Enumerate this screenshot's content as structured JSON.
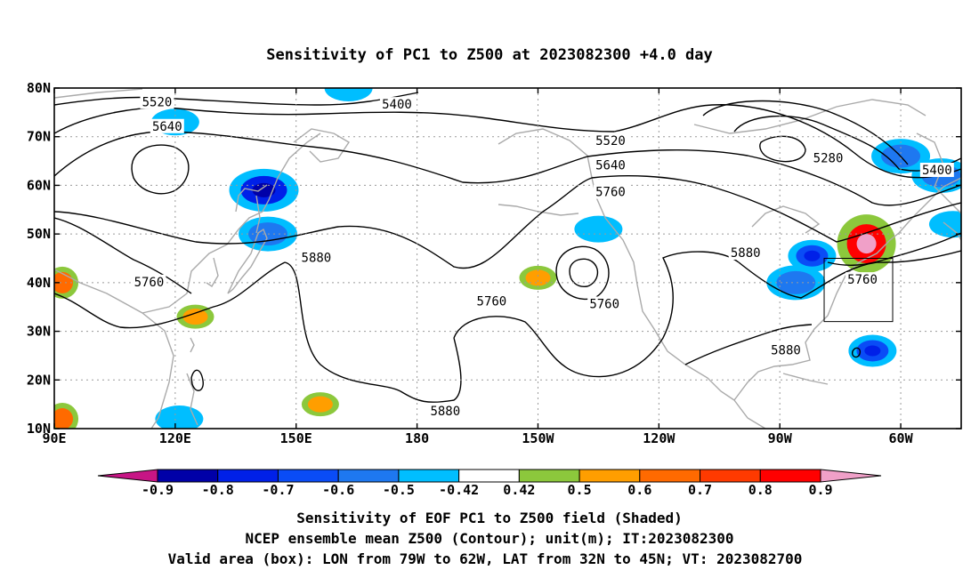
{
  "title": "Sensitivity of PC1 to Z500 at 2023082300 +4.0 day",
  "footer": [
    "Sensitivity of EOF PC1 to Z500 field (Shaded)",
    "NCEP ensemble mean Z500 (Contour); unit(m); IT:2023082300",
    "Valid area (box): LON from 79W to 62W, LAT from 32N to 45N; VT: 2023082700"
  ],
  "map": {
    "lon_ticks": [
      "90E",
      "120E",
      "150E",
      "180",
      "150W",
      "120W",
      "90W",
      "60W"
    ],
    "lat_ticks": [
      "80N",
      "70N",
      "60N",
      "50N",
      "40N",
      "30N",
      "20N",
      "10N"
    ],
    "lon_range": [
      90,
      315
    ],
    "lat_range": [
      10,
      80
    ],
    "grid": true,
    "contour_labels": [
      {
        "text": "5520",
        "lon": 115.5,
        "lat": 77
      },
      {
        "text": "5640",
        "lon": 118,
        "lat": 72
      },
      {
        "text": "5400",
        "lon": 175,
        "lat": 76.5
      },
      {
        "text": "5520",
        "lon": 228,
        "lat": 69
      },
      {
        "text": "5640",
        "lon": 228,
        "lat": 64
      },
      {
        "text": "5760",
        "lon": 228,
        "lat": 58.5
      },
      {
        "text": "5280",
        "lon": 282,
        "lat": 65.5
      },
      {
        "text": "5400",
        "lon": 309,
        "lat": 63
      },
      {
        "text": "5880",
        "lon": 155,
        "lat": 45
      },
      {
        "text": "5760",
        "lon": 113.5,
        "lat": 40
      },
      {
        "text": "5760",
        "lon": 198.5,
        "lat": 36
      },
      {
        "text": "5760",
        "lon": 226.5,
        "lat": 35.5
      },
      {
        "text": "5880",
        "lon": 261.5,
        "lat": 46
      },
      {
        "text": "5760",
        "lon": 290.5,
        "lat": 40.5
      },
      {
        "text": "5880",
        "lon": 271.5,
        "lat": 26
      },
      {
        "text": "5880",
        "lon": 187,
        "lat": 13.5
      }
    ],
    "valid_box": {
      "lon": [
        281,
        298
      ],
      "lat": [
        32,
        45
      ]
    }
  },
  "colorbar": {
    "labels": [
      "-0.9",
      "-0.8",
      "-0.7",
      "-0.6",
      "-0.5",
      "-0.42",
      "0.42",
      "0.5",
      "0.6",
      "0.7",
      "0.8",
      "0.9"
    ],
    "low_color": "#c71585",
    "high_color": "#f0a0c8",
    "colors": [
      "#0000a8",
      "#0020e8",
      "#0a4cf6",
      "#1e78f0",
      "#00beff",
      "#ffffff",
      "#8cc83c",
      "#ff9e00",
      "#ff6a00",
      "#ff3a00",
      "#ff0000"
    ]
  },
  "chart_data": {
    "type": "heatmap",
    "title": "Sensitivity of PC1 to Z500 at 2023082300 +4.0 day",
    "xlabel": "",
    "ylabel": "",
    "xlim": [
      90,
      315
    ],
    "ylim": [
      10,
      80
    ],
    "x_tick_labels": [
      "90E",
      "120E",
      "150E",
      "180",
      "150W",
      "120W",
      "90W",
      "60W"
    ],
    "y_tick_labels": [
      "80N",
      "70N",
      "60N",
      "50N",
      "40N",
      "30N",
      "20N",
      "10N"
    ],
    "color_levels": [
      -0.9,
      -0.8,
      -0.7,
      -0.6,
      -0.5,
      -0.42,
      0.42,
      0.5,
      0.6,
      0.7,
      0.8,
      0.9
    ],
    "contour_levels": [
      5280,
      5400,
      5520,
      5640,
      5760,
      5880
    ],
    "shaded_regions": [
      {
        "lon": 142,
        "lat": 59,
        "value": -0.8
      },
      {
        "lon": 143,
        "lat": 50,
        "value": -0.6
      },
      {
        "lon": 120,
        "lat": 73,
        "value": -0.5
      },
      {
        "lon": 163,
        "lat": 80,
        "value": -0.5
      },
      {
        "lon": 225,
        "lat": 51,
        "value": -0.5
      },
      {
        "lon": 278,
        "lat": 45.5,
        "value": -0.7
      },
      {
        "lon": 274,
        "lat": 40,
        "value": -0.6
      },
      {
        "lon": 300,
        "lat": 66,
        "value": -0.6
      },
      {
        "lon": 310,
        "lat": 62,
        "value": -0.6
      },
      {
        "lon": 313,
        "lat": 52,
        "value": -0.5
      },
      {
        "lon": 293,
        "lat": 26,
        "value": -0.7
      },
      {
        "lon": 291.5,
        "lat": 48,
        "value": 0.8
      },
      {
        "lon": 92,
        "lat": 40,
        "value": 0.6
      },
      {
        "lon": 125,
        "lat": 33,
        "value": 0.5
      },
      {
        "lon": 156,
        "lat": 15,
        "value": 0.5
      },
      {
        "lon": 92,
        "lat": 12,
        "value": 0.6
      },
      {
        "lon": 210,
        "lat": 41,
        "value": 0.5
      },
      {
        "lon": 121,
        "lat": 12,
        "value": -0.5
      }
    ],
    "box": {
      "lon": [
        281,
        298
      ],
      "lat": [
        32,
        45
      ]
    }
  }
}
